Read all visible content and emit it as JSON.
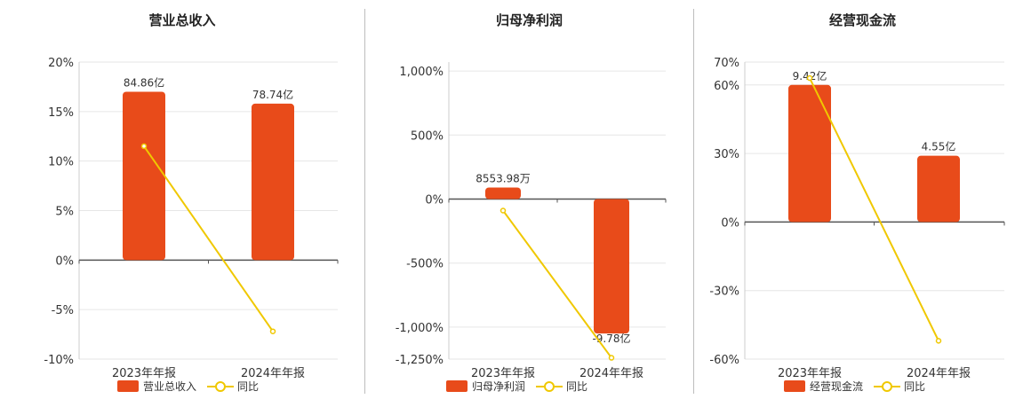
{
  "colors": {
    "bar": "#e84b1a",
    "line": "#f0c800"
  },
  "chart_data": [
    {
      "type": "bar",
      "title": "营业总收入",
      "categories": [
        "2023年年报",
        "2024年年报"
      ],
      "ytick_labels": [
        "20%",
        "15%",
        "10%",
        "5%",
        "0%",
        "-5%",
        "-10%"
      ],
      "yticks": [
        20,
        15,
        10,
        5,
        0,
        -5,
        -10
      ],
      "ylim": [
        -10,
        20
      ],
      "series": [
        {
          "name": "营业总收入",
          "kind": "bar",
          "values": [
            17.0,
            15.8
          ],
          "labels": [
            "84.86亿",
            "78.74亿"
          ]
        },
        {
          "name": "同比",
          "kind": "line",
          "values": [
            11.5,
            -7.2
          ]
        }
      ],
      "grid": true,
      "legend": "bottom"
    },
    {
      "type": "bar",
      "title": "归母净利润",
      "categories": [
        "2023年年报",
        "2024年年报"
      ],
      "ytick_labels": [
        "1,000%",
        "500%",
        "0%",
        "-500%",
        "-1,000%",
        "-1,250%"
      ],
      "yticks": [
        1000,
        500,
        0,
        -500,
        -1000,
        -1250
      ],
      "ylim": [
        -1250,
        1070
      ],
      "series": [
        {
          "name": "归母净利润",
          "kind": "bar",
          "values": [
            90,
            -1050
          ],
          "labels": [
            "8553.98万",
            "-9.78亿"
          ]
        },
        {
          "name": "同比",
          "kind": "line",
          "values": [
            -90,
            -1240
          ]
        }
      ],
      "grid": true,
      "legend": "bottom"
    },
    {
      "type": "bar",
      "title": "经营现金流",
      "categories": [
        "2023年年报",
        "2024年年报"
      ],
      "ytick_labels": [
        "70%",
        "60%",
        "30%",
        "0%",
        "-30%",
        "-60%"
      ],
      "yticks": [
        70,
        60,
        30,
        0,
        -30,
        -60
      ],
      "ylim": [
        -60,
        70
      ],
      "series": [
        {
          "name": "经营现金流",
          "kind": "bar",
          "values": [
            60,
            29
          ],
          "labels": [
            "9.42亿",
            "4.55亿"
          ]
        },
        {
          "name": "同比",
          "kind": "line",
          "values": [
            63,
            -52
          ]
        }
      ],
      "grid": true,
      "legend": "bottom"
    }
  ]
}
